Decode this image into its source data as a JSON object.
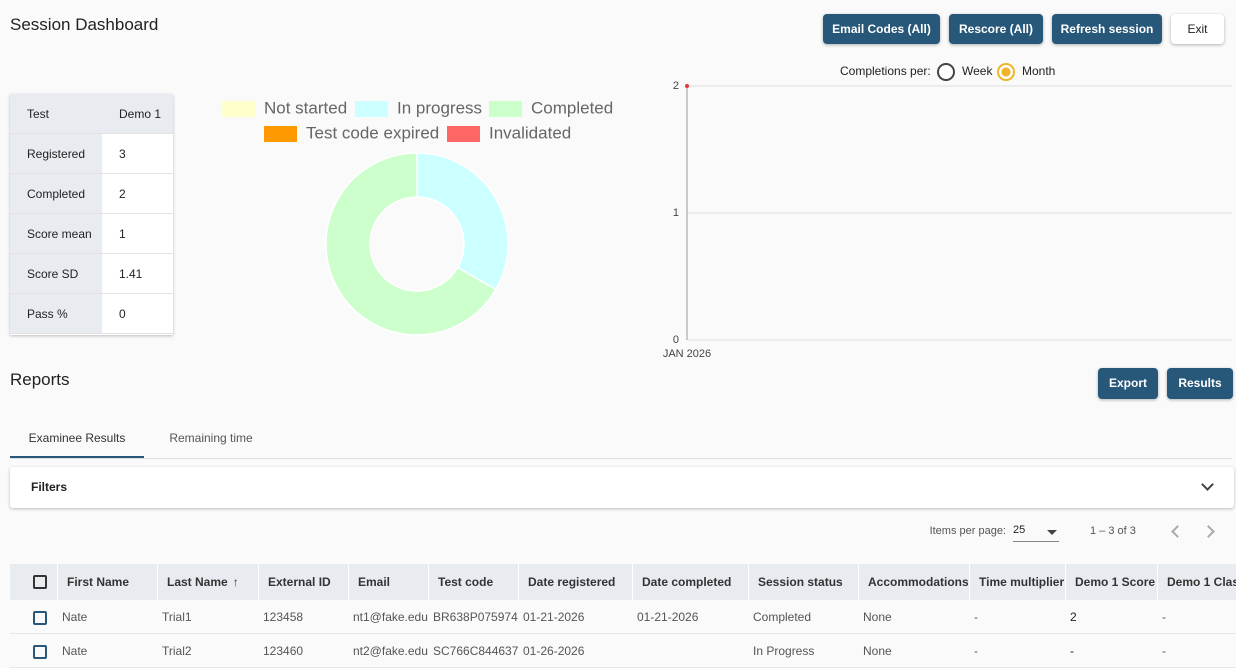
{
  "header": {
    "title": "Session Dashboard",
    "buttons": [
      "Email Codes (All)",
      "Rescore (All)",
      "Refresh session",
      "Exit"
    ]
  },
  "stats": {
    "rows": [
      [
        "Test",
        "Demo 1"
      ],
      [
        "Registered",
        "3"
      ],
      [
        "Completed",
        "2"
      ],
      [
        "Score mean",
        "1"
      ],
      [
        "Score SD",
        "1.41"
      ],
      [
        "Pass %",
        "0"
      ]
    ]
  },
  "completions": {
    "label": "Completions per:",
    "options": [
      "Week",
      "Month"
    ],
    "selected": 1
  },
  "chart_data": [
    {
      "type": "donut",
      "categories": [
        "Not started",
        "In progress",
        "Completed",
        "Test code expired",
        "Invalidated"
      ],
      "values": [
        0,
        1,
        2,
        0,
        0
      ],
      "colors": [
        "#ffffcc",
        "#ccffff",
        "#ccffcc",
        "#ff9900",
        "#ff6666"
      ]
    },
    {
      "type": "line",
      "categories": [
        "JAN 2026"
      ],
      "series": [
        {
          "values": [
            2
          ],
          "color": "#e53935"
        }
      ],
      "ylim": [
        0,
        2
      ],
      "yticks": [
        0,
        1,
        2
      ],
      "grid": true
    }
  ],
  "reports": {
    "title": "Reports",
    "buttons": [
      "Export",
      "Results"
    ],
    "tabs": [
      "Examinee Results",
      "Remaining time"
    ],
    "active_tab": 0,
    "filters": "Filters",
    "paginator": {
      "label": "Items per page:",
      "size": "25",
      "range": "1 – 3 of 3"
    },
    "table": {
      "columns": [
        "First Name",
        "Last Name",
        "External ID",
        "Email",
        "Test code",
        "Date registered",
        "Date completed",
        "Session status",
        "Accommodations",
        "Time multiplier",
        "Demo 1 Score",
        "Demo 1 Clas"
      ],
      "sorted_column": 1,
      "rows": [
        [
          "Nate",
          "Trial1",
          "123458",
          "nt1@fake.edu",
          "BR638P075974",
          "01-21-2026",
          "01-21-2026",
          "Completed",
          "None",
          "-",
          "2",
          "-"
        ],
        [
          "Nate",
          "Trial2",
          "123460",
          "nt2@fake.edu",
          "SC766C844637",
          "01-26-2026",
          null,
          "In Progress",
          "None",
          "-",
          "-",
          "-"
        ]
      ]
    }
  }
}
